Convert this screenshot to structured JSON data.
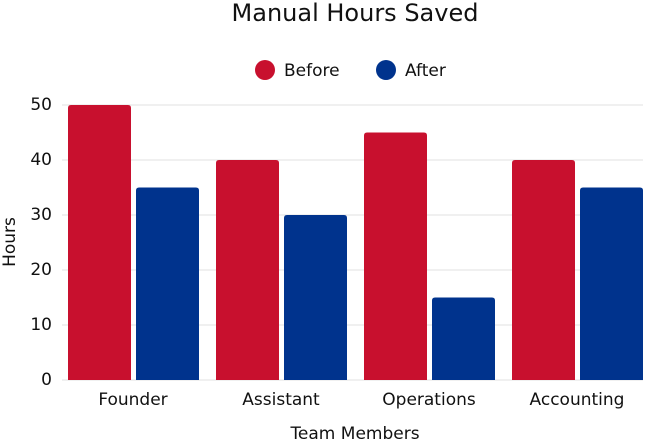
{
  "chart_data": {
    "type": "bar",
    "title": "Manual Hours Saved",
    "x_label": "Team Members",
    "y_label": "Hours",
    "categories": [
      "Founder",
      "Assistant",
      "Operations",
      "Accounting"
    ],
    "series": [
      {
        "name": "Before",
        "color": "#c8102e",
        "values": [
          50,
          40,
          45,
          40
        ]
      },
      {
        "name": "After",
        "color": "#00338d",
        "values": [
          35,
          30,
          15,
          35
        ]
      }
    ],
    "ylim": [
      0,
      50
    ],
    "yticks": [
      0,
      10,
      20,
      30,
      40,
      50
    ],
    "grid": true,
    "legend": "top"
  }
}
